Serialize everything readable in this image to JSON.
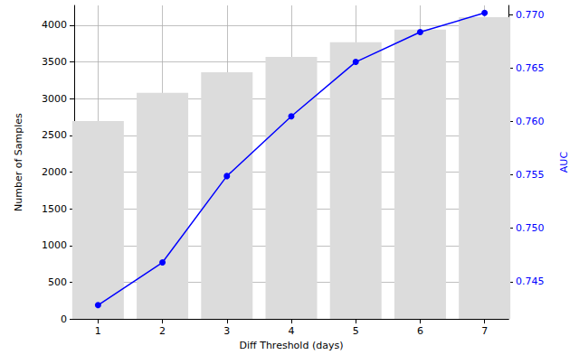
{
  "chart_data": {
    "type": "bar",
    "x": [
      1,
      2,
      3,
      4,
      5,
      6,
      7
    ],
    "xlabel": "Diff Threshold (days)",
    "xlim": [
      0.63,
      7.37
    ],
    "xticks": [
      1,
      2,
      3,
      4,
      5,
      6,
      7
    ],
    "ylabel": "Number of Samples",
    "ylim": [
      0,
      4270
    ],
    "yticks": [
      0,
      500,
      1000,
      1500,
      2000,
      2500,
      3000,
      3500,
      4000
    ],
    "y2label": "AUC",
    "y2lim": [
      0.7415,
      0.7709
    ],
    "y2ticks": [
      0.745,
      {
        "value": 0.75,
        "label": "0.750"
      },
      0.755,
      {
        "value": 0.76,
        "label": "0.760"
      },
      0.765,
      {
        "value": 0.77,
        "label": "0.770"
      }
    ],
    "grid": true,
    "series": [
      {
        "type": "bar",
        "color": "#dcdcdc",
        "values": [
          2695,
          3080,
          3360,
          3570,
          3770,
          3940,
          4110
        ]
      },
      {
        "type": "line",
        "axis": "y2",
        "color": "#0000ff",
        "marker": "circle",
        "values": [
          0.7428,
          0.7468,
          0.7549,
          0.7605,
          0.7656,
          0.7684,
          0.7702
        ]
      }
    ]
  }
}
